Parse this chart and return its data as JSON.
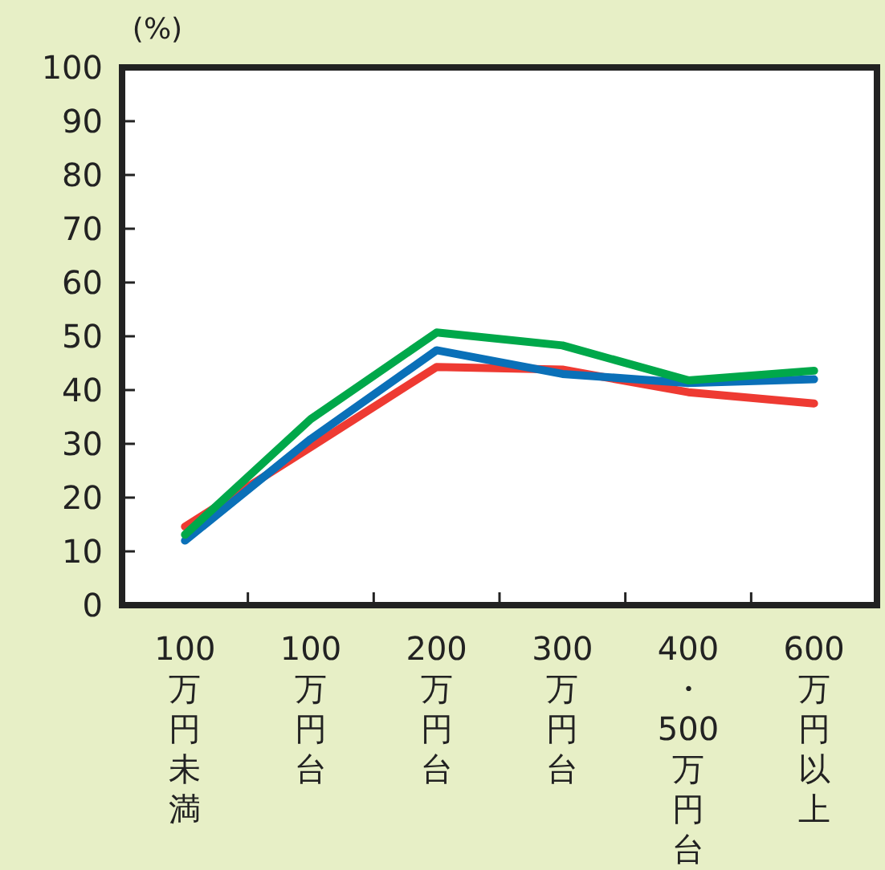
{
  "chart_data": {
    "type": "line",
    "ylabel": "(%)",
    "categories": [
      "100万円未満",
      "100万円台",
      "200万円台",
      "300万円台",
      "400・500万円台",
      "600万円以上"
    ],
    "series": [
      {
        "color": "#ee3a32",
        "values": [
          14.6,
          29.4,
          44.3,
          43.8,
          39.6,
          37.5
        ]
      },
      {
        "color": "#0a70b8",
        "values": [
          12.0,
          30.9,
          47.4,
          43.0,
          41.3,
          42.0
        ]
      },
      {
        "color": "#00a84a",
        "values": [
          13.1,
          34.6,
          50.7,
          48.3,
          41.8,
          43.6
        ]
      }
    ],
    "ylim": [
      0,
      100
    ],
    "yticks": [
      0,
      10,
      20,
      30,
      40,
      50,
      60,
      70,
      80,
      90,
      100
    ],
    "grid": false,
    "line_style": "solid"
  }
}
